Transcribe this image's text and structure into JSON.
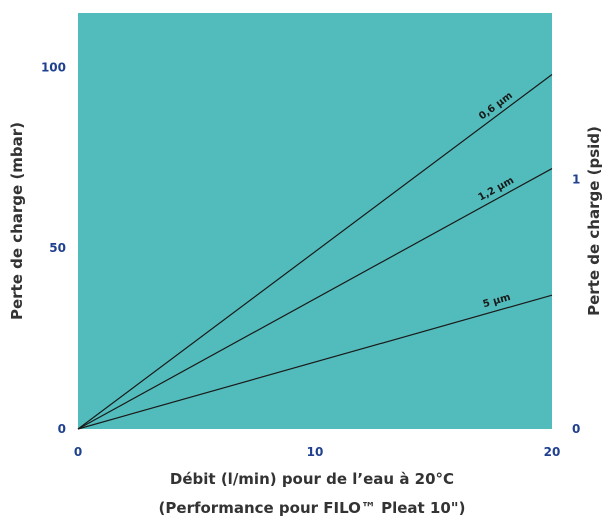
{
  "chart_data": {
    "type": "line",
    "title": "",
    "xlabel": "Débit (l/min) pour de l’eau à 20°C",
    "xlabel_sub": "(Performance pour FILO™ Pleat 10\")",
    "ylabel_left": "Perte de charge (mbar)",
    "ylabel_right": "Perte de charge (psid)",
    "xlim": [
      0,
      20
    ],
    "ylim_left": [
      0,
      115
    ],
    "ylim_right": [
      0,
      1.667
    ],
    "x_ticks": [
      "0",
      "10",
      "20"
    ],
    "y_left_ticks": [
      "0",
      "50",
      "100"
    ],
    "y_right_ticks": [
      "0",
      "1"
    ],
    "grid": false,
    "colors": {
      "plot_background": "#52bcbc",
      "line": "#1a1a1a",
      "tick_text": "#1f3f8f",
      "axis_text": "#333333"
    },
    "series": [
      {
        "name": "0,6 µm",
        "x": [
          0,
          20
        ],
        "y": [
          0,
          98
        ]
      },
      {
        "name": "1,2 µm",
        "x": [
          0,
          20
        ],
        "y": [
          0,
          72
        ]
      },
      {
        "name": "5 µm",
        "x": [
          0,
          20
        ],
        "y": [
          0,
          37
        ]
      }
    ]
  }
}
